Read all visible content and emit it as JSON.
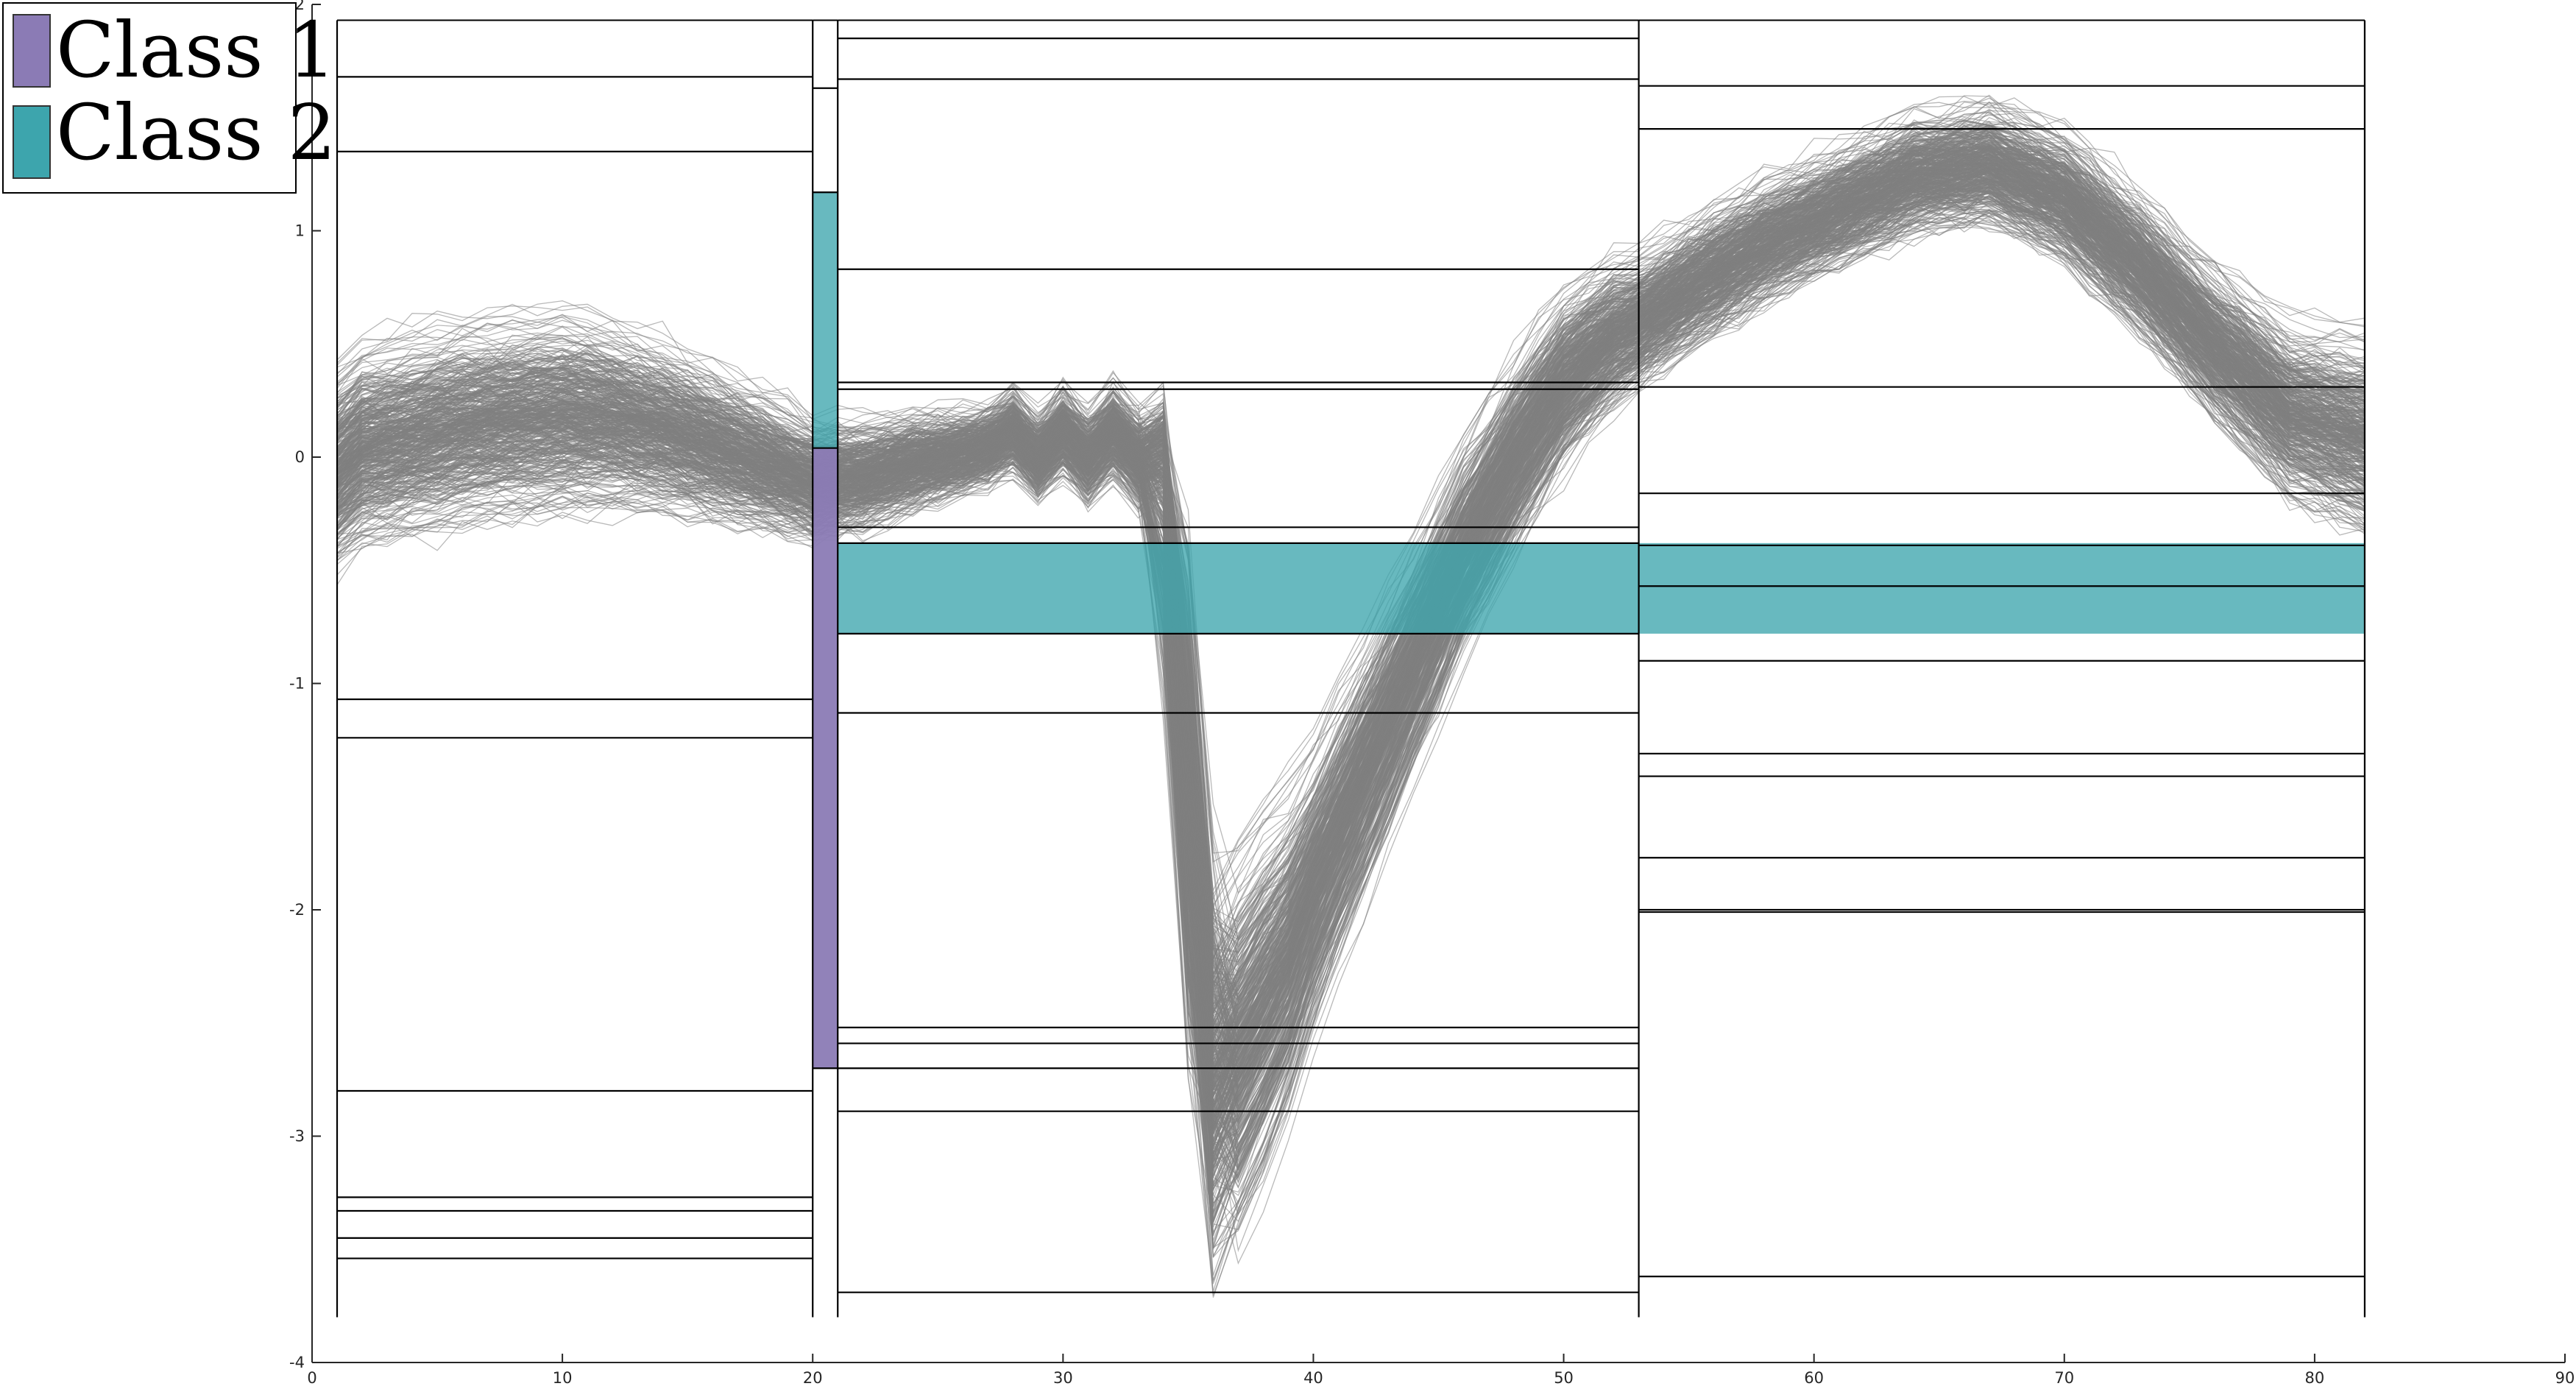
{
  "chart_data": {
    "type": "line",
    "title": "",
    "xlabel": "",
    "ylabel": "",
    "xlim": [
      0,
      90
    ],
    "ylim": [
      -4,
      2
    ],
    "x_ticks": [
      {
        "value": 0,
        "label": "0"
      },
      {
        "value": 10,
        "label": "10"
      },
      {
        "value": 20,
        "label": "20"
      },
      {
        "value": 30,
        "label": "30"
      },
      {
        "value": 40,
        "label": "40"
      },
      {
        "value": 50,
        "label": "50"
      },
      {
        "value": 60,
        "label": "60"
      },
      {
        "value": 70,
        "label": "70"
      },
      {
        "value": 80,
        "label": "80"
      },
      {
        "value": 90,
        "label": "90"
      }
    ],
    "y_ticks": [
      {
        "value": -4,
        "label": "-4"
      },
      {
        "value": -3,
        "label": "-3"
      },
      {
        "value": -2,
        "label": "-2"
      },
      {
        "value": -1,
        "label": "-1"
      },
      {
        "value": 0,
        "label": "0"
      },
      {
        "value": 1,
        "label": "1"
      },
      {
        "value": 2,
        "label": "2"
      }
    ],
    "grid": false,
    "legend": {
      "placement": "top-left",
      "entries": [
        {
          "label": "Class 1",
          "color": "#8B7BB5"
        },
        {
          "label": "Class 2",
          "color": "#3DA5AD"
        }
      ]
    },
    "series_color": "#7f7f7f",
    "series_count_estimate": 500,
    "mean_curve": {
      "x": [
        1,
        2,
        4,
        6,
        8,
        10,
        12,
        14,
        16,
        18,
        20,
        22,
        24,
        26,
        27,
        28,
        29,
        30,
        31,
        32,
        33,
        34,
        35,
        36,
        37,
        38,
        39,
        40,
        42,
        44,
        46,
        48,
        50,
        52,
        53,
        55,
        58,
        61,
        64,
        67,
        70,
        73,
        76,
        79,
        82
      ],
      "y": [
        -0.05,
        0.05,
        0.1,
        0.15,
        0.18,
        0.2,
        0.18,
        0.13,
        0.06,
        -0.02,
        -0.1,
        -0.08,
        -0.02,
        0.02,
        0.05,
        0.12,
        0.0,
        0.12,
        0.0,
        0.12,
        0.0,
        0.1,
        -1.6,
        -2.9,
        -2.6,
        -2.4,
        -2.2,
        -1.9,
        -1.4,
        -0.9,
        -0.4,
        0.0,
        0.35,
        0.55,
        0.6,
        0.75,
        0.95,
        1.1,
        1.25,
        1.3,
        1.15,
        0.85,
        0.5,
        0.2,
        0.1
      ]
    },
    "band_spread": {
      "x": [
        1,
        10,
        20,
        27,
        34,
        36,
        38,
        40,
        45,
        50,
        53,
        60,
        67,
        75,
        82
      ],
      "sd": [
        0.3,
        0.3,
        0.18,
        0.12,
        0.15,
        0.6,
        0.55,
        0.4,
        0.3,
        0.25,
        0.2,
        0.18,
        0.18,
        0.22,
        0.3
      ]
    },
    "bins": [
      {
        "x_from": 1,
        "x_to": 20,
        "edges": [
          1.68,
          1.35,
          -1.07,
          -1.24,
          -2.8,
          -3.27,
          -3.33,
          -3.45,
          -3.54
        ],
        "fills": []
      },
      {
        "x_from": 20,
        "x_to": 21,
        "edges": [
          1.63,
          1.17,
          0.04,
          -2.7
        ],
        "fills": [
          {
            "from": 0.04,
            "to": 1.17,
            "class": "Class 2"
          },
          {
            "from": -2.7,
            "to": 0.04,
            "class": "Class 1"
          }
        ]
      },
      {
        "x_from": 21,
        "x_to": 53,
        "edges": [
          1.85,
          1.67,
          0.83,
          0.33,
          0.3,
          -0.31,
          -0.38,
          -0.78,
          -1.13,
          -2.52,
          -2.59,
          -2.7,
          -2.89,
          -3.69
        ],
        "fills": [
          {
            "from": -0.78,
            "to": -0.38,
            "class": "Class 2"
          }
        ]
      },
      {
        "x_from": 53,
        "x_to": 82,
        "edges": [
          1.64,
          1.45,
          0.31,
          -0.16,
          -0.39,
          -0.57,
          -0.9,
          -1.31,
          -1.41,
          -1.77,
          -2.0,
          -2.01,
          -3.62
        ],
        "fills": [
          {
            "from": -0.78,
            "to": -0.38,
            "class": "Class 2"
          }
        ]
      }
    ],
    "bin_outline_top": 1.93,
    "bin_outline_bottom": -3.8
  }
}
